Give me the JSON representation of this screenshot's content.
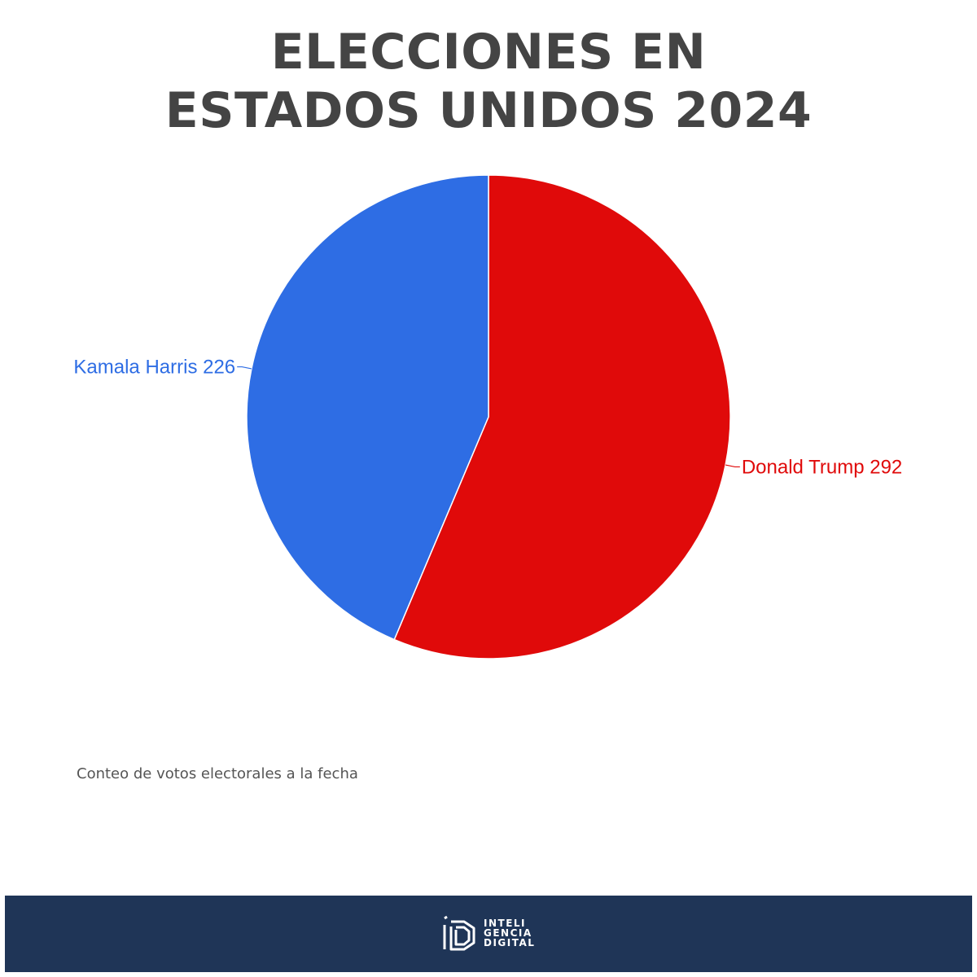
{
  "chart_data": {
    "type": "pie",
    "title_lines": [
      "ELECCIONES EN",
      "ESTADOS UNIDOS 2024"
    ],
    "slices": [
      {
        "label": "Donald Trump 292",
        "value": 292,
        "color": "#e00a0a"
      },
      {
        "label": "Kamala Harris 226",
        "value": 226,
        "color": "#2e6de4"
      }
    ]
  },
  "note": "Conteo de votos electorales a la fecha",
  "footer": {
    "logo_lines": [
      "INTELI",
      "GENCIA",
      "DIGITAL"
    ]
  },
  "colors": {
    "title": "#444444",
    "footer_bg": "#1f3557",
    "background": "#ffffff"
  },
  "icons": {
    "logo": "inteligencia-digital-logo-icon"
  }
}
